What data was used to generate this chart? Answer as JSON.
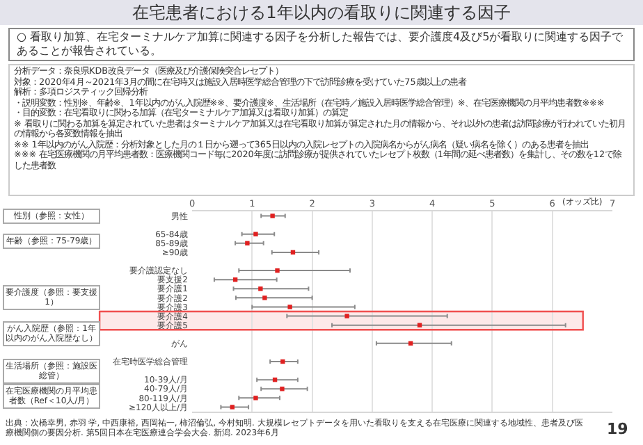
{
  "chart_data": {
    "type": "scatter",
    "orientation": "horizontal",
    "title": "在宅患者における1年以内の看取りに関連する因子",
    "subtitle": "○ 看取り加算、在宅ターミナルケア加算に関連する因子を分析した報告では、要介護度4及び5が看取りに関連する因子であることが報告されている。",
    "xlabel": "(オッズ比)",
    "categories": [
      "男性",
      null,
      "65-84歳",
      "85-89歳",
      "≥90歳",
      null,
      "要介護認定なし",
      "要支援2",
      "要介護1",
      "要介護2",
      "要介護3",
      "要介護4",
      "要介護5",
      null,
      "がん",
      null,
      "在宅時医学総合管理",
      null,
      "10-39人/月",
      "40-79人/月",
      "80-119人/月",
      "≥120人以上/月"
    ],
    "values": [
      1.34,
      null,
      1.06,
      0.92,
      1.68,
      null,
      1.42,
      0.72,
      1.14,
      1.21,
      1.63,
      2.58,
      3.79,
      null,
      3.64,
      null,
      1.51,
      null,
      1.38,
      1.5,
      1.06,
      0.67
    ],
    "errors": [
      [
        1.15,
        1.55
      ],
      null,
      [
        0.83,
        1.37
      ],
      [
        0.72,
        1.19
      ],
      [
        1.33,
        2.11
      ],
      null,
      [
        0.78,
        2.63
      ],
      [
        0.37,
        1.41
      ],
      [
        0.69,
        1.94
      ],
      [
        0.73,
        2.0
      ],
      [
        1.0,
        2.71
      ],
      [
        1.58,
        4.25
      ],
      [
        2.33,
        6.22
      ],
      null,
      [
        3.07,
        4.32
      ],
      null,
      [
        1.3,
        1.76
      ],
      null,
      [
        1.08,
        1.76
      ],
      [
        1.15,
        1.92
      ],
      [
        0.78,
        1.46
      ],
      [
        0.48,
        0.94
      ]
    ],
    "color": "#e02020",
    "marker": "square",
    "xlim": [
      0,
      7
    ],
    "xticks": [
      0,
      1,
      2,
      3,
      4,
      5,
      6,
      7
    ],
    "grid": "x",
    "bands": [
      {
        "axis": "y",
        "from": "要介護4",
        "to": "要介護5",
        "color": "#f05050"
      }
    ],
    "annotations": [
      "分析データ：奈良県KDB改良データ（医療及び介護保険突合レセプト）",
      "対象：2020年4月～2021年3月の間に在宅時又は施設入居時医学総合管理の下で訪問診療を受けていた75歳以上の患者",
      "解析：多項ロジスティック回帰分析",
      "・説明変数：性別※、年齢※、1年以内のがん入院歴※※、要介護度※、生活場所（在宅時／施設入居時医学総合管理）※、在宅医療機関の月平均患者数※※※",
      "・目的変数：在宅看取りに関わる加算（在宅ターミナルケア加算又は看取り加算）の算定",
      "※ 看取りに関わる加算を算定されていた患者はターミナルケア加算又は在宅看取り加算が算定された月の情報から、それ以外の患者は訪問診療が行われていた初月の情報から各変数情報を抽出",
      "※※ 1年以内のがん入院歴：分析対象とした月の１日から遡って365日以内の入院レセプトの入院病名からがん病名（疑い病名を除く）のある患者を抽出",
      "※※※ 在宅医療機関の月平均患者数：医療機関コード毎に2020年度に訪問診療が提供されていたレセプト枚数（1年間の延べ患者数）を集計し、その数を12で除した患者数",
      "性別（参照：女性）",
      "年齢（参照：75-79歳）",
      "要介護度（参照：要支援1）",
      "がん入院歴（参照：1年以内のがん入院歴なし）",
      "生活場所（参照：施設医総管）",
      "在宅医療機関の月平均患者数（Ref＜10人/月）",
      "出典：次橋幸男, 赤羽 学, 中西康裕, 西岡祐一, 柿沼倫弘, 今村知明. 大規模レセプトデータを用いた看取りを支える在宅医療に関連する地域性、患者及び医療機関側の要因分析. 第5回日本在宅医療連合学会大会. 新潟. 2023年6月",
      "19"
    ]
  }
}
